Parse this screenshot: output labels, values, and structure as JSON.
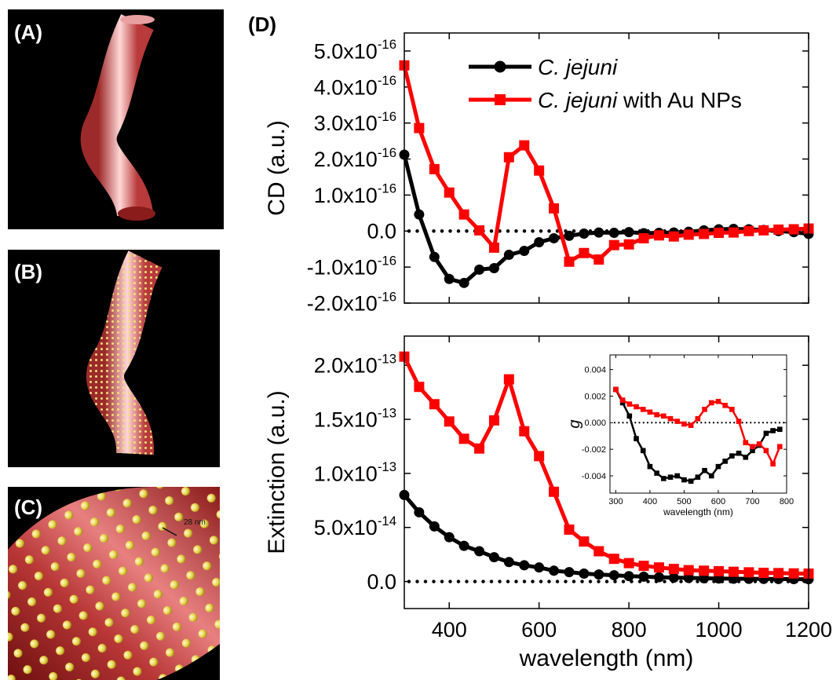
{
  "panels": [
    {
      "label": "(A)"
    },
    {
      "label": "(B)"
    },
    {
      "label": "(C)",
      "annotation": "28 nm"
    },
    {
      "label": "(D)"
    }
  ],
  "chart_data": [
    {
      "type": "line",
      "y_label": "CD (a.u.)",
      "x": [
        300,
        333,
        367,
        400,
        433,
        467,
        500,
        533,
        567,
        600,
        633,
        667,
        700,
        733,
        767,
        800,
        833,
        867,
        900,
        933,
        967,
        1000,
        1033,
        1067,
        1100,
        1133,
        1167,
        1200
      ],
      "xlim": [
        300,
        1200
      ],
      "xticks": [
        400,
        600,
        800,
        1000,
        1200
      ],
      "show_xtick_labels": false,
      "ylim": [
        -2e-16,
        5.5e-16
      ],
      "yticks": [
        {
          "value": -2e-16,
          "label": "-2.0x10-16"
        },
        {
          "value": -1e-16,
          "label": "-1.0x10-16"
        },
        {
          "value": 0,
          "label": "0.0"
        },
        {
          "value": 1e-16,
          "label": "1.0x10-16"
        },
        {
          "value": 2e-16,
          "label": "2.0x10-16"
        },
        {
          "value": 3e-16,
          "label": "3.0x10-16"
        },
        {
          "value": 4e-16,
          "label": "4.0x10-16"
        },
        {
          "value": 5e-16,
          "label": "5.0x10-16"
        }
      ],
      "zero_line": true,
      "legend": "upper right",
      "series": [
        {
          "name": "C. jejuni",
          "color": "#000000",
          "marker": "circle",
          "values": [
            2.12e-16,
            4.6e-17,
            -7.2e-17,
            -1.33e-16,
            -1.44e-16,
            -1.07e-16,
            -1.03e-16,
            -6.6e-17,
            -5.5e-17,
            -3.1e-17,
            -2e-17,
            -1.3e-17,
            -7e-18,
            -4e-18,
            -5e-18,
            -3e-18,
            -6e-18,
            -5e-18,
            -4e-18,
            -2e-18,
            2e-18,
            5e-18,
            6e-18,
            5e-18,
            3e-18,
            0,
            -3e-18,
            -8e-18
          ]
        },
        {
          "name": "C. jejuni with Au NPs",
          "color": "#ff0000",
          "marker": "square",
          "values": [
            4.6e-16,
            2.86e-16,
            1.72e-16,
            1.07e-16,
            4.6e-17,
            2e-18,
            -4.6e-17,
            2.05e-16,
            2.38e-16,
            1.68e-16,
            6.3e-17,
            -8.5e-17,
            -6.1e-17,
            -7.9e-17,
            -3.9e-17,
            -3.7e-17,
            -2e-17,
            -1.2e-17,
            -1.5e-17,
            -1e-17,
            -8e-18,
            -5e-18,
            -4e-18,
            0,
            2e-18,
            4e-18,
            5e-18,
            7e-18
          ]
        }
      ]
    },
    {
      "type": "line",
      "y_label": "Extinction (a.u.)",
      "x_label": "wavelength (nm)",
      "x": [
        300,
        333,
        367,
        400,
        433,
        467,
        500,
        533,
        567,
        600,
        633,
        667,
        700,
        733,
        767,
        800,
        833,
        867,
        900,
        933,
        967,
        1000,
        1033,
        1067,
        1100,
        1133,
        1167,
        1200
      ],
      "xlim": [
        300,
        1200
      ],
      "xticks": [
        400,
        600,
        800,
        1000,
        1200
      ],
      "ylim": [
        -2.5e-14,
        2.27e-13
      ],
      "yticks": [
        {
          "value": 0,
          "label": "0.0"
        },
        {
          "value": 5e-14,
          "label": "5.0x10-14"
        },
        {
          "value": 1e-13,
          "label": "1.0x10-13"
        },
        {
          "value": 1.5e-13,
          "label": "1.5x10-13"
        },
        {
          "value": 2e-13,
          "label": "2.0x10-13"
        }
      ],
      "zero_line": true,
      "series": [
        {
          "color": "#000000",
          "marker": "circle",
          "values": [
            8e-14,
            6.4e-14,
            5.1e-14,
            4.1e-14,
            3.3e-14,
            2.8e-14,
            2.25e-14,
            1.8e-14,
            1.5e-14,
            1.3e-14,
            1e-14,
            8.7e-15,
            7.3e-15,
            6.5e-15,
            5.8e-15,
            5e-15,
            4.5e-15,
            4e-15,
            3.6e-15,
            3.3e-15,
            3e-15,
            2.8e-15,
            2.6e-15,
            2.5e-15,
            2.4e-15,
            2.3e-15,
            2.2e-15,
            2.1e-15
          ]
        },
        {
          "color": "#ff0000",
          "marker": "square",
          "values": [
            2.08e-13,
            1.8e-13,
            1.64e-13,
            1.48e-13,
            1.32e-13,
            1.23e-13,
            1.49e-13,
            1.87e-13,
            1.39e-13,
            1.16e-13,
            8.3e-14,
            4.8e-14,
            3.7e-14,
            2.8e-14,
            2.1e-14,
            1.7e-14,
            1.45e-14,
            1.3e-14,
            1.16e-14,
            1.05e-14,
            1e-14,
            9.5e-15,
            9e-15,
            8.5e-15,
            8e-15,
            7.8e-15,
            7.5e-15,
            7.3e-15
          ]
        }
      ]
    },
    {
      "type": "line",
      "y_label": "g",
      "x_label": "wavelength (nm)",
      "x": [
        300,
        320,
        340,
        360,
        380,
        400,
        420,
        440,
        460,
        480,
        500,
        520,
        540,
        560,
        580,
        600,
        620,
        640,
        660,
        680,
        700,
        720,
        740,
        760,
        780
      ],
      "xlim": [
        283,
        800
      ],
      "xticks": [
        300,
        400,
        500,
        600,
        700,
        800
      ],
      "ylim": [
        -0.0053,
        0.0051
      ],
      "yticks": [
        -0.004,
        -0.002,
        {
          "value": 0,
          "label": "0.000"
        },
        0.002,
        0.004
      ],
      "zero_line": true,
      "series": [
        {
          "color": "#000000",
          "marker": "square",
          "values": [
            0.0025,
            0.0015,
            0.0005,
            -0.0012,
            -0.0021,
            -0.0033,
            -0.0038,
            -0.0042,
            -0.0041,
            -0.004,
            -0.0043,
            -0.0044,
            -0.0041,
            -0.0036,
            -0.004,
            -0.0033,
            -0.0029,
            -0.0025,
            -0.0023,
            -0.0026,
            -0.0021,
            -0.0017,
            -0.0008,
            -0.0006,
            -0.0005
          ]
        },
        {
          "color": "#ff0000",
          "marker": "square",
          "values": [
            0.0025,
            0.0017,
            0.0014,
            0.0012,
            0.001,
            0.0008,
            0.0006,
            0.0005,
            0.0003,
            0.0001,
            -0.0001,
            -0.0002,
            0.0003,
            0.001,
            0.0015,
            0.0016,
            0.0013,
            0.001,
            0.0001,
            -0.0015,
            -0.0018,
            -0.0016,
            -0.0021,
            -0.0031,
            -0.0018
          ]
        }
      ]
    }
  ]
}
